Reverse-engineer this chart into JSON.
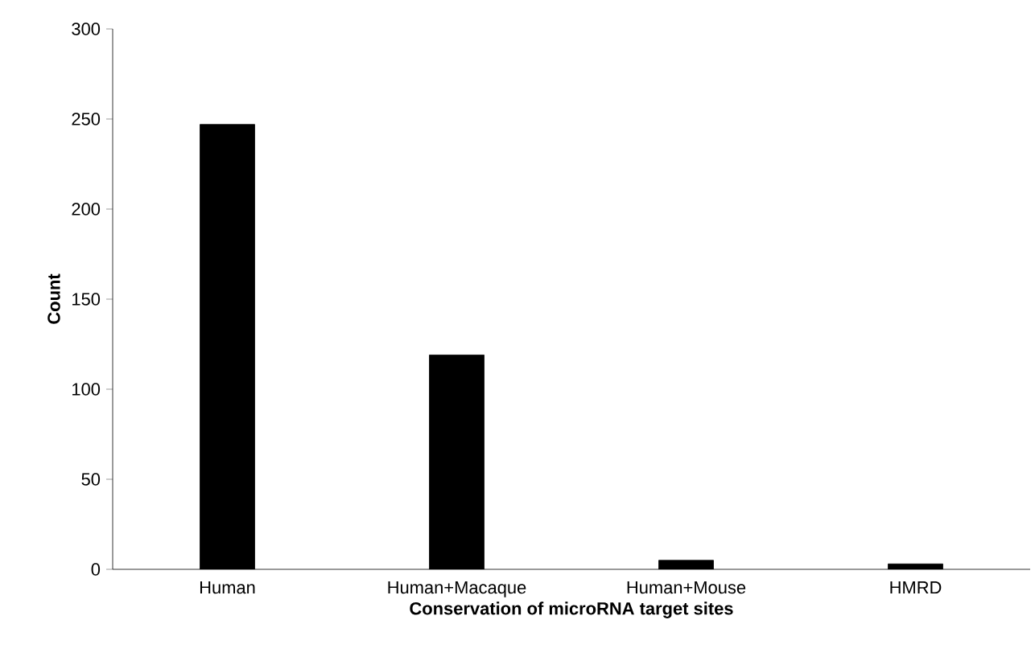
{
  "chart_data": {
    "type": "bar",
    "xlabel": "Conservation of microRNA target sites",
    "ylabel": "Count",
    "categories": [
      "Human",
      "Human+Macaque",
      "Human+Mouse",
      "HMRD"
    ],
    "values": [
      247,
      119,
      5,
      3
    ],
    "color": "#000000",
    "ylim": [
      0,
      300
    ],
    "yticks": [
      0,
      50,
      100,
      150,
      200,
      250,
      300
    ],
    "grid": false
  }
}
